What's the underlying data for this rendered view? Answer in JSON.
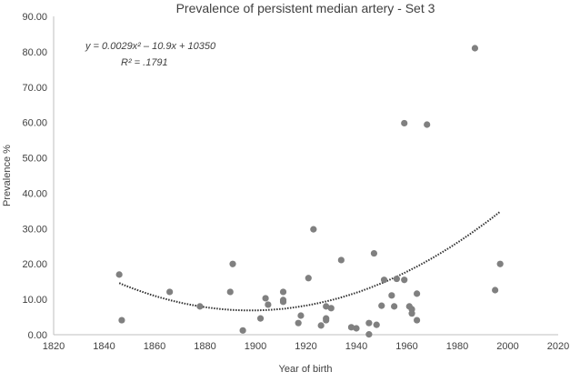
{
  "chart_data": {
    "type": "scatter",
    "title": "Prevalence of persistent median artery - Set 3",
    "xlabel": "Year of birth",
    "ylabel": "Prevalence %",
    "xlim": [
      1820,
      2020
    ],
    "ylim": [
      0,
      90
    ],
    "x_ticks": [
      "1820",
      "1840",
      "1860",
      "1880",
      "1900",
      "1920",
      "1940",
      "1960",
      "1980",
      "2000",
      "2020"
    ],
    "y_ticks": [
      "0.00",
      "10.00",
      "20.00",
      "30.00",
      "40.00",
      "50.00",
      "60.00",
      "70.00",
      "80.00",
      "90.00"
    ],
    "grid": false,
    "marker_color": "#808080",
    "trendline": {
      "type": "polynomial-2",
      "style": "dotted",
      "color": "#303030",
      "equation_label": "y = 0.0029x² – 10.9x + 10350",
      "r2_label": "R² = .1791"
    },
    "points": [
      [
        1846,
        17.0
      ],
      [
        1847,
        4.1
      ],
      [
        1866,
        12.1
      ],
      [
        1878,
        8.0
      ],
      [
        1890,
        12.1
      ],
      [
        1891,
        20.0
      ],
      [
        1895,
        1.2
      ],
      [
        1902,
        4.6
      ],
      [
        1904,
        10.3
      ],
      [
        1905,
        8.5
      ],
      [
        1911,
        12.1
      ],
      [
        1911,
        9.8
      ],
      [
        1911,
        9.3
      ],
      [
        1917,
        3.3
      ],
      [
        1918,
        5.4
      ],
      [
        1921,
        16.0
      ],
      [
        1923,
        29.8
      ],
      [
        1926,
        2.6
      ],
      [
        1928,
        4.6
      ],
      [
        1928,
        4.1
      ],
      [
        1928,
        8.0
      ],
      [
        1930,
        7.5
      ],
      [
        1934,
        21.1
      ],
      [
        1938,
        2.1
      ],
      [
        1940,
        1.8
      ],
      [
        1945,
        3.3
      ],
      [
        1945,
        0.1
      ],
      [
        1947,
        23.0
      ],
      [
        1948,
        2.8
      ],
      [
        1950,
        8.2
      ],
      [
        1951,
        15.5
      ],
      [
        1954,
        11.1
      ],
      [
        1955,
        8.0
      ],
      [
        1956,
        15.8
      ],
      [
        1959,
        15.5
      ],
      [
        1959,
        59.8
      ],
      [
        1961,
        8.0
      ],
      [
        1962,
        7.2
      ],
      [
        1962,
        6.0
      ],
      [
        1964,
        4.1
      ],
      [
        1964,
        11.6
      ],
      [
        1968,
        59.4
      ],
      [
        1987,
        81.0
      ],
      [
        1995,
        12.6
      ],
      [
        1997,
        20.0
      ]
    ]
  }
}
